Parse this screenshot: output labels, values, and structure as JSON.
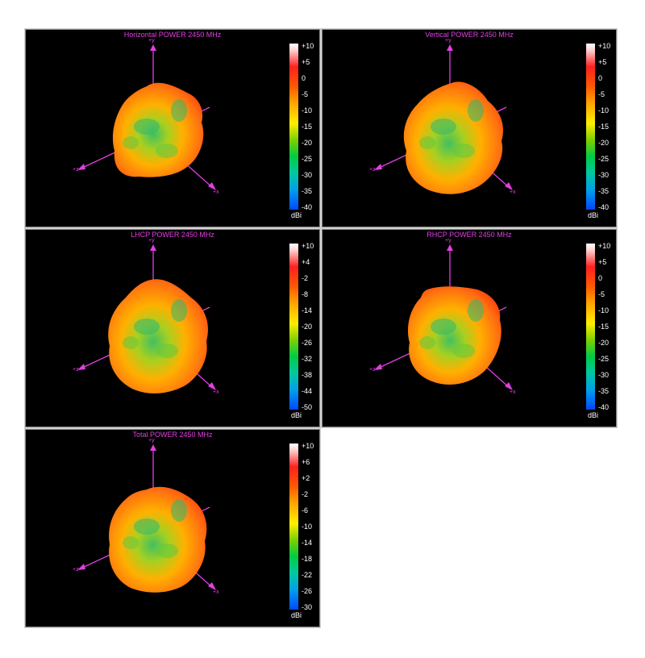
{
  "panels": [
    {
      "title": "Horizontal POWER 2450  MHz",
      "axes": {
        "y": "+y",
        "z": "+z",
        "x": "+x"
      },
      "scale_ticks": [
        "+10",
        "+5",
        "0",
        "-5",
        "-10",
        "-15",
        "-20",
        "-25",
        "-30",
        "-35",
        "-40"
      ],
      "scale_unit": "dBi",
      "scale_range": [
        -40,
        10
      ]
    },
    {
      "title": "Vertical POWER 2450  MHz",
      "axes": {
        "y": "+y",
        "z": "+z",
        "x": "+x"
      },
      "scale_ticks": [
        "+10",
        "+5",
        "0",
        "-5",
        "-10",
        "-15",
        "-20",
        "-25",
        "-30",
        "-35",
        "-40"
      ],
      "scale_unit": "dBi",
      "scale_range": [
        -40,
        10
      ]
    },
    {
      "title": "LHCP POWER 2450  MHz",
      "axes": {
        "y": "+y",
        "z": "+z",
        "x": "+x"
      },
      "scale_ticks": [
        "+10",
        "+4",
        "-2",
        "-8",
        "-14",
        "-20",
        "-26",
        "-32",
        "-38",
        "-44",
        "-50"
      ],
      "scale_unit": "dBi",
      "scale_range": [
        -50,
        10
      ]
    },
    {
      "title": "RHCP POWER 2450  MHz",
      "axes": {
        "y": "+y",
        "z": "+z",
        "x": "+x"
      },
      "scale_ticks": [
        "+10",
        "+5",
        "0",
        "-5",
        "-10",
        "-15",
        "-20",
        "-25",
        "-30",
        "-35",
        "-40"
      ],
      "scale_unit": "dBi",
      "scale_range": [
        -40,
        10
      ]
    },
    {
      "title": "Total POWER 2450  MHz",
      "axes": {
        "y": "+y",
        "z": "+z",
        "x": "+x"
      },
      "scale_ticks": [
        "+10",
        "+6",
        "+2",
        "-2",
        "-6",
        "-10",
        "-14",
        "-18",
        "-22",
        "-26",
        "-30"
      ],
      "scale_unit": "dBi",
      "scale_range": [
        -30,
        10
      ]
    }
  ],
  "colors": {
    "panel_bg": "#000000",
    "axis": "#e040e0",
    "title": "#e040e0",
    "scale_text": "#ffffff"
  }
}
